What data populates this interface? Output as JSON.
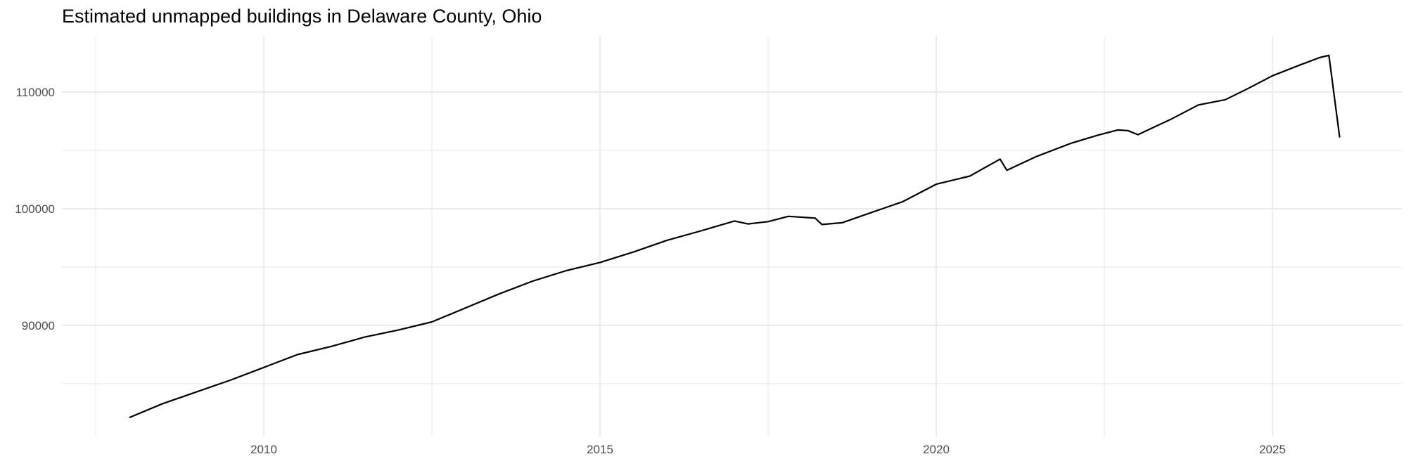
{
  "chart_data": {
    "type": "line",
    "title": "Estimated unmapped buildings in Delaware County, Ohio",
    "xlabel": "",
    "ylabel": "",
    "xlim": [
      2007.1,
      2026.9
    ],
    "ylim": [
      80700,
      115000
    ],
    "x_ticks": [
      2010,
      2015,
      2020,
      2025
    ],
    "x_tick_labels": [
      "2010",
      "2015",
      "2020",
      "2025"
    ],
    "x_minor_ticks": [
      2007.5,
      2012.5,
      2017.5,
      2022.5
    ],
    "y_ticks": [
      90000,
      100000,
      110000
    ],
    "y_tick_labels": [
      "90000",
      "100000",
      "110000"
    ],
    "y_minor_ticks": [
      85000,
      95000,
      105000
    ],
    "grid": true,
    "legend": null,
    "line_color": "#000000",
    "series": [
      {
        "name": "Estimated unmapped buildings",
        "x": [
          2008.0,
          2008.5,
          2009.0,
          2009.5,
          2010.0,
          2010.5,
          2011.0,
          2011.5,
          2012.0,
          2012.5,
          2013.0,
          2013.5,
          2014.0,
          2014.5,
          2015.0,
          2015.5,
          2016.0,
          2016.5,
          2017.0,
          2017.2,
          2017.5,
          2017.8,
          2018.2,
          2018.3,
          2018.6,
          2019.0,
          2019.5,
          2020.0,
          2020.5,
          2020.95,
          2021.05,
          2021.5,
          2022.0,
          2022.4,
          2022.7,
          2022.85,
          2023.0,
          2023.5,
          2023.9,
          2024.3,
          2024.6,
          2025.0,
          2025.4,
          2025.7,
          2025.84,
          2026.0
        ],
        "values": [
          82100,
          83300,
          84300,
          85300,
          86400,
          87500,
          88200,
          89000,
          89600,
          90300,
          91500,
          92700,
          93800,
          94700,
          95400,
          96300,
          97300,
          98100,
          98950,
          98700,
          98900,
          99350,
          99200,
          98650,
          98800,
          99600,
          100600,
          102100,
          102800,
          104250,
          103300,
          104500,
          105600,
          106300,
          106750,
          106700,
          106350,
          107700,
          108900,
          109350,
          110200,
          111400,
          112300,
          112950,
          113150,
          106100
        ]
      }
    ]
  }
}
